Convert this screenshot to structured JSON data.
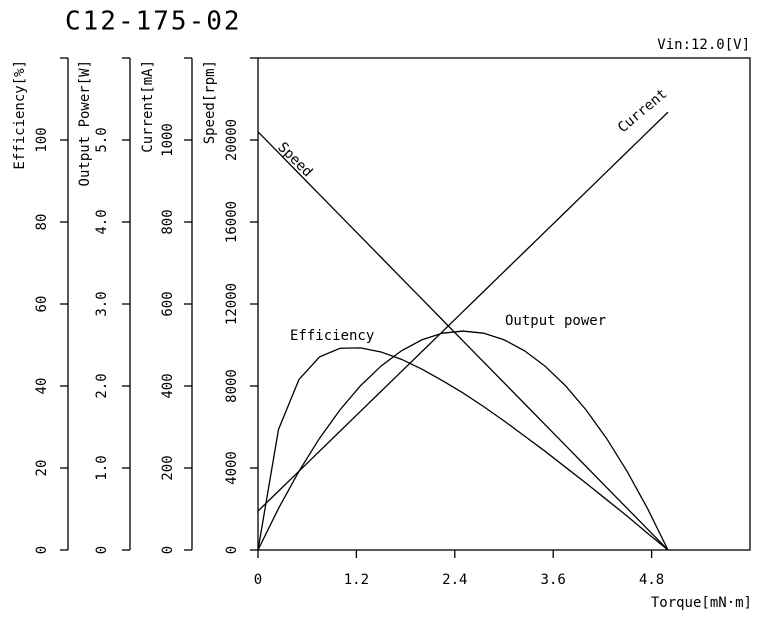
{
  "chart_data": {
    "type": "line",
    "title": "C12-175-02",
    "annotation": "Vin:12.0[V]",
    "xlabel": "Torque[mN·m]",
    "xlim": [
      0,
      6
    ],
    "xticks": [
      0,
      1.2,
      2.4,
      3.6,
      4.8
    ],
    "x": [
      0,
      0.25,
      0.5,
      0.75,
      1.0,
      1.25,
      1.5,
      1.75,
      2.0,
      2.25,
      2.5,
      2.75,
      3.0,
      3.25,
      3.5,
      3.75,
      4.0,
      4.25,
      4.5,
      4.75,
      5.0
    ],
    "y_axes": [
      {
        "label": "Efficiency[%]",
        "ylim": [
          0,
          120
        ],
        "yticks": [
          0,
          20,
          40,
          60,
          80,
          100
        ]
      },
      {
        "label": "Output Power[W]",
        "ylim": [
          0,
          6
        ],
        "yticks": [
          0,
          {
            "value": 1,
            "label": "1.0"
          },
          {
            "value": 2,
            "label": "2.0"
          },
          {
            "value": 3,
            "label": "3.0"
          },
          {
            "value": 4,
            "label": "4.0"
          },
          {
            "value": 5,
            "label": "5.0"
          }
        ]
      },
      {
        "label": "Current[mA]",
        "ylim": [
          0,
          1200
        ],
        "yticks": [
          0,
          200,
          400,
          600,
          800,
          1000
        ]
      },
      {
        "label": "Speed[rpm]",
        "ylim": [
          0,
          24000
        ],
        "yticks": [
          0,
          4000,
          8000,
          12000,
          16000,
          20000
        ]
      }
    ],
    "series": [
      {
        "name": "Speed",
        "color": "#000000",
        "axis": 3,
        "values": [
          20400,
          19380,
          18360,
          17340,
          16320,
          15300,
          14280,
          13260,
          12240,
          11220,
          10200,
          9180,
          8160,
          7140,
          6120,
          5100,
          4080,
          3060,
          2040,
          1020,
          0
        ]
      },
      {
        "name": "Current",
        "color": "#000000",
        "axis": 2,
        "values": [
          95,
          143.65,
          192.3,
          240.95,
          289.6,
          338.25,
          386.9,
          435.55,
          484.2,
          532.85,
          581.5,
          630.15,
          678.8,
          727.45,
          776.1,
          824.75,
          873.4,
          922.05,
          970.7,
          1019.35,
          1068
        ]
      },
      {
        "name": "Output power",
        "color": "#000000",
        "axis": 1,
        "values": [
          0,
          0.507,
          0.961,
          1.362,
          1.709,
          2.003,
          2.243,
          2.43,
          2.564,
          2.644,
          2.67,
          2.644,
          2.564,
          2.43,
          2.243,
          2.003,
          1.709,
          1.362,
          0.961,
          0.507,
          0
        ]
      },
      {
        "name": "Efficiency",
        "color": "#000000",
        "axis": 0,
        "values": [
          0,
          29.4,
          41.6,
          47.1,
          49.2,
          49.3,
          48.3,
          46.5,
          44.1,
          41.3,
          38.3,
          35.0,
          31.5,
          27.8,
          24.1,
          20.2,
          16.3,
          12.3,
          8.3,
          4.1,
          0
        ]
      }
    ]
  }
}
